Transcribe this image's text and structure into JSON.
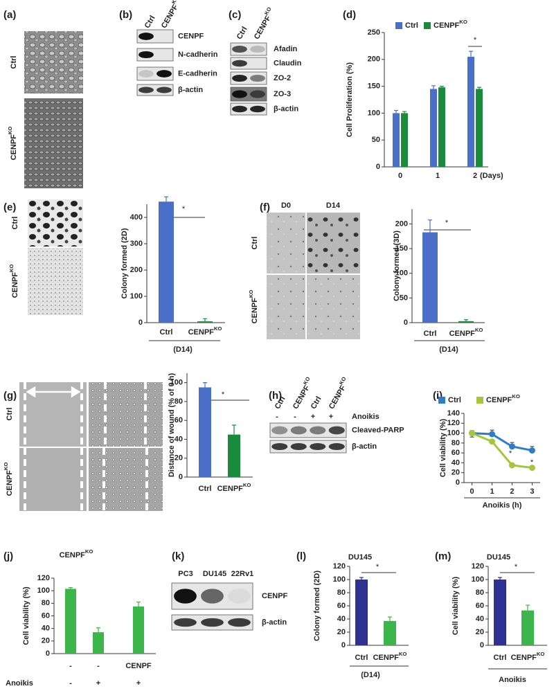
{
  "panel_labels": [
    "(a)",
    "(b)",
    "(c)",
    "(d)",
    "(e)",
    "(f)",
    "(g)",
    "(h)",
    "(i)",
    "(j)",
    "(k)",
    "(l)",
    "(m)"
  ],
  "images": [
    {
      "rows": [
        "Ctrl",
        {
          "text": "CENPF",
          "sup": "KO"
        }
      ]
    },
    {
      "rows": [
        "Ctrl",
        {
          "text": "CENPF",
          "sup": "KO"
        }
      ]
    },
    {
      "columns": [
        "D0",
        "D14"
      ],
      "rows": [
        "Ctrl",
        {
          "text": "CENPF",
          "sup": "KO"
        }
      ]
    },
    {
      "rows": [
        "Ctrl",
        {
          "text": "CENPF",
          "sup": "KO"
        }
      ]
    }
  ],
  "blots": [
    {
      "columns": [
        "Ctrl",
        {
          "text": "CENPF",
          "sup": "KO"
        }
      ],
      "rows": [
        "CENPF",
        "N-cadherin",
        "E-cadherin",
        "β-actin"
      ]
    },
    {
      "columns": [
        "Ctrl",
        {
          "text": "CENPF",
          "sup": "KO"
        }
      ],
      "rows": [
        "Afadin",
        "Claudin",
        "ZO-2",
        "ZO-3",
        "β-actin"
      ]
    },
    {
      "columns": [
        "Ctrl",
        {
          "text": "CENPF",
          "sup": "KO"
        },
        "Ctrl",
        {
          "text": "CENPF",
          "sup": "KO"
        }
      ],
      "treatment": {
        "label": "Anoikis",
        "values": [
          "-",
          "-",
          "+",
          "+"
        ]
      },
      "rows": [
        "Cleaved-PARP",
        "β-actin"
      ]
    },
    {
      "columns": [
        "PC3",
        "DU145",
        "22Rv1"
      ],
      "rows": [
        "CENPF",
        "β-actin"
      ]
    }
  ],
  "chart_data": [
    {
      "type": "bar",
      "y_label": "Cell Proliferation (%)",
      "x_label": "(Days)",
      "categories": [
        "0",
        "1",
        "2"
      ],
      "series": [
        {
          "name": "Ctrl",
          "color": "#4a6fc8",
          "values": [
            100,
            145,
            205
          ],
          "errors": [
            5,
            6,
            10
          ]
        },
        {
          "name": {
            "text": "CENPF",
            "sup": "KO"
          },
          "color": "#1a8a3c",
          "values": [
            100,
            148,
            145
          ],
          "errors": [
            3,
            2,
            3
          ]
        }
      ],
      "ylim": [
        0,
        250
      ],
      "yticks": [
        0,
        50,
        100,
        150,
        200,
        250
      ],
      "annotations": [
        "*"
      ]
    },
    {
      "type": "bar",
      "y_label": "Colony formed (2D)",
      "x_label": "(D14)",
      "categories": [
        "Ctrl",
        {
          "text": "CENPF",
          "sup": "KO"
        }
      ],
      "values": [
        460,
        5
      ],
      "errors": [
        18,
        10
      ],
      "colors": [
        "#4a6fc8",
        "#1a8a3c"
      ],
      "ylim": [
        0,
        450
      ],
      "yticks": [
        0,
        100,
        200,
        300,
        400
      ],
      "annotations": [
        "*"
      ]
    },
    {
      "type": "bar",
      "y_label": "Colony formed (3D)",
      "x_label": "(D14)",
      "categories": [
        "Ctrl",
        {
          "text": "CENPF",
          "sup": "KO"
        }
      ],
      "values": [
        183,
        3
      ],
      "errors": [
        25,
        3
      ],
      "colors": [
        "#4a6fc8",
        "#1a8a3c"
      ],
      "ylim": [
        0,
        230
      ],
      "yticks": [
        0,
        50,
        100,
        150,
        200
      ],
      "annotations": [
        "*"
      ]
    },
    {
      "type": "bar",
      "y_label": "Distance of wound (% of 0 h)",
      "categories": [
        "Ctrl",
        {
          "text": "CENPF",
          "sup": "KO"
        }
      ],
      "values": [
        95,
        45
      ],
      "errors": [
        5,
        10
      ],
      "colors": [
        "#4a6fc8",
        "#1a8a3c"
      ],
      "ylim": [
        0,
        110
      ],
      "yticks": [
        0,
        20,
        40,
        60,
        80,
        100
      ],
      "annotations": [
        "*"
      ]
    },
    {
      "type": "line",
      "y_label": "Cell viability (%)",
      "x_label": "Anoikis (h)",
      "x": [
        0,
        1,
        2,
        3
      ],
      "xlim": [
        -0.4,
        3.4
      ],
      "xticks": [
        0,
        1,
        2,
        3
      ],
      "series": [
        {
          "name": "Ctrl",
          "color": "#2f7dc6",
          "values": [
            100,
            98,
            73,
            65
          ],
          "errors": [
            5,
            8,
            8,
            8
          ]
        },
        {
          "name": {
            "text": "CENPF",
            "sup": "KO"
          },
          "color": "#a4c639",
          "values": [
            100,
            83,
            35,
            30
          ],
          "errors": [
            8,
            3,
            2,
            1
          ]
        }
      ],
      "ylim": [
        0,
        140
      ],
      "yticks": [
        0,
        20,
        40,
        60,
        80,
        100,
        120,
        140
      ],
      "annotations": [
        "*",
        "*"
      ]
    },
    {
      "type": "bar",
      "title": {
        "text": "CENPF",
        "sup": "KO"
      },
      "y_label": "Cell viability (%)",
      "categories": [
        "-",
        "-",
        "CENPF"
      ],
      "treatment": {
        "label": "Anoikis",
        "values": [
          "-",
          "+",
          "+"
        ]
      },
      "values": [
        103,
        34,
        75
      ],
      "errors": [
        2,
        7,
        7
      ],
      "colors": [
        "#3cb54a",
        "#3cb54a",
        "#3cb54a"
      ],
      "ylim": [
        0,
        120
      ],
      "yticks": [
        0,
        20,
        40,
        60,
        80,
        100,
        120
      ]
    },
    {
      "type": "bar",
      "title": "DU145",
      "y_label": "Colony formed (2D)",
      "x_label": "(D14)",
      "categories": [
        "Ctrl",
        {
          "text": "CENPF",
          "sup": "KO"
        }
      ],
      "values": [
        100,
        37
      ],
      "errors": [
        3,
        6
      ],
      "colors": [
        "#2e3192",
        "#3cb54a"
      ],
      "ylim": [
        0,
        120
      ],
      "yticks": [
        0,
        20,
        40,
        60,
        80,
        100,
        120
      ],
      "annotations": [
        "*"
      ]
    },
    {
      "type": "bar",
      "title": "DU145",
      "y_label": "Cell viability (%)",
      "x_label": "Anoikis",
      "categories": [
        "Ctrl",
        {
          "text": "CENPF",
          "sup": "KO"
        }
      ],
      "values": [
        100,
        53
      ],
      "errors": [
        3,
        8
      ],
      "colors": [
        "#2e3192",
        "#3cb54a"
      ],
      "ylim": [
        0,
        120
      ],
      "yticks": [
        0,
        20,
        40,
        60,
        80,
        100,
        120
      ],
      "annotations": [
        "*"
      ]
    }
  ]
}
